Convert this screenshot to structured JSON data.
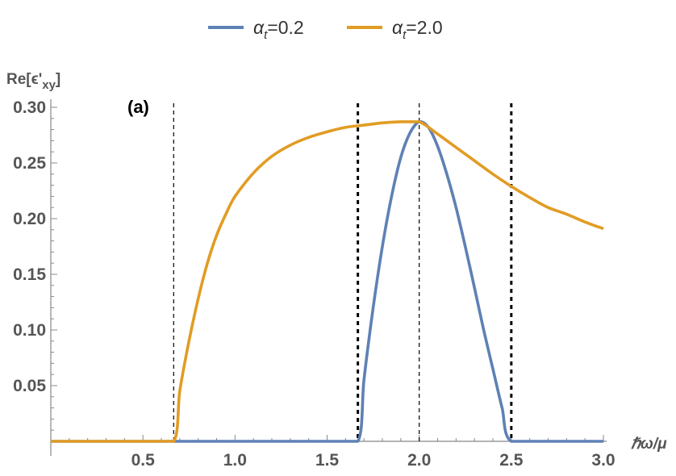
{
  "chart_data": {
    "type": "line",
    "panel_label": "(a)",
    "ylabel": "Re[ϵ'xy]",
    "ylabel_parts": {
      "main": "Re[ϵ'",
      "sub": "xy",
      "close": "]"
    },
    "xlabel": "ℏω/μ",
    "xlim": [
      0.0,
      3.0
    ],
    "ylim": [
      0.0,
      0.3
    ],
    "x_ticks": [
      0.5,
      1.0,
      1.5,
      2.0,
      2.5,
      3.0
    ],
    "x_tick_labels": [
      "0.5",
      "1.0",
      "1.5",
      "2.0",
      "2.5",
      "3.0"
    ],
    "y_ticks": [
      0.05,
      0.1,
      0.15,
      0.2,
      0.25,
      0.3
    ],
    "y_tick_labels": [
      "0.05",
      "0.10",
      "0.15",
      "0.20",
      "0.25",
      "0.30"
    ],
    "vertical_lines": [
      {
        "x": 0.667,
        "style": "thin-dashed"
      },
      {
        "x": 1.667,
        "style": "thick-dotted"
      },
      {
        "x": 2.0,
        "style": "thin-dashed"
      },
      {
        "x": 2.5,
        "style": "thick-dotted"
      }
    ],
    "series": [
      {
        "name": "αt=0.2",
        "legend": {
          "base": "α",
          "sub": "t",
          "rest": "=0.2"
        },
        "color": "#5E81B5",
        "x": [
          0.0,
          0.5,
          1.0,
          1.5,
          1.667,
          1.7,
          1.75,
          1.8,
          1.85,
          1.9,
          1.95,
          2.0,
          2.05,
          2.1,
          2.15,
          2.2,
          2.25,
          2.3,
          2.35,
          2.4,
          2.45,
          2.5,
          2.75,
          3.0
        ],
        "y": [
          0.0,
          0.0,
          0.0,
          0.0,
          0.0,
          0.055,
          0.12,
          0.175,
          0.22,
          0.255,
          0.277,
          0.287,
          0.282,
          0.265,
          0.24,
          0.21,
          0.175,
          0.138,
          0.1,
          0.065,
          0.03,
          0.0,
          0.0,
          0.0
        ]
      },
      {
        "name": "αt=2.0",
        "legend": {
          "base": "α",
          "sub": "t",
          "rest": "=2.0"
        },
        "color": "#E19C24",
        "x": [
          0.0,
          0.5,
          0.667,
          0.7,
          0.75,
          0.8,
          0.85,
          0.9,
          0.95,
          1.0,
          1.1,
          1.2,
          1.3,
          1.4,
          1.5,
          1.6,
          1.7,
          1.8,
          1.9,
          2.0,
          2.1,
          2.2,
          2.3,
          2.4,
          2.5,
          2.6,
          2.7,
          2.8,
          2.9,
          3.0
        ],
        "y": [
          0.0,
          0.0,
          0.0,
          0.045,
          0.09,
          0.128,
          0.16,
          0.185,
          0.204,
          0.22,
          0.241,
          0.256,
          0.266,
          0.273,
          0.278,
          0.282,
          0.284,
          0.286,
          0.287,
          0.287,
          0.276,
          0.264,
          0.252,
          0.24,
          0.229,
          0.219,
          0.21,
          0.204,
          0.197,
          0.191
        ]
      }
    ],
    "legend_position": "top-center",
    "grid": false
  }
}
